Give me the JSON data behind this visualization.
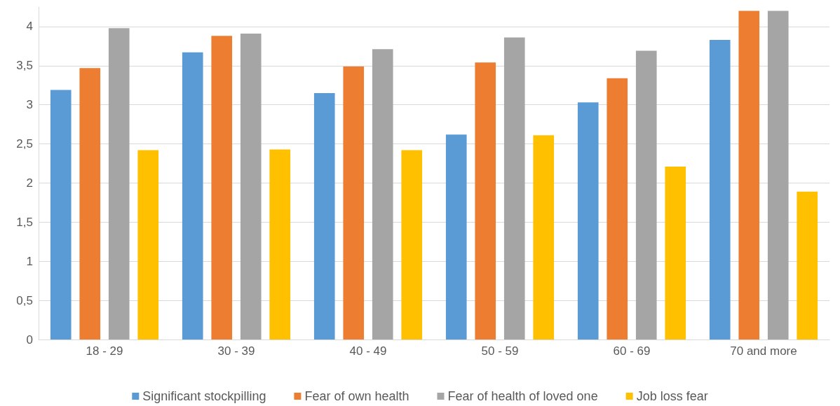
{
  "chart_data": {
    "type": "bar",
    "categories": [
      "18 - 29",
      "30 - 39",
      "40 - 49",
      "50 - 59",
      "60 - 69",
      "70 and more"
    ],
    "series": [
      {
        "name": "Significant stockpilling",
        "color": "#5b9bd5",
        "values": [
          3.19,
          3.67,
          3.15,
          2.62,
          3.03,
          3.83
        ]
      },
      {
        "name": "Fear of own health",
        "color": "#ed7d31",
        "values": [
          3.47,
          3.88,
          3.49,
          3.54,
          3.34,
          4.2
        ]
      },
      {
        "name": "Fear of health of loved one",
        "color": "#a5a5a5",
        "values": [
          3.98,
          3.91,
          3.71,
          3.86,
          3.69,
          4.2
        ]
      },
      {
        "name": "Job loss fear",
        "color": "#ffc000",
        "values": [
          2.42,
          2.43,
          2.42,
          2.61,
          2.21,
          1.89
        ]
      }
    ],
    "ylim": [
      0,
      4.25
    ],
    "yticks": [
      0,
      {
        "value": 0.5,
        "label": "0,5"
      },
      1,
      {
        "value": 1.5,
        "label": "1,5"
      },
      2,
      {
        "value": 2.5,
        "label": "2,5"
      },
      3,
      {
        "value": 3.5,
        "label": "3,5"
      },
      4
    ],
    "grid": "y",
    "legend": "bottom"
  }
}
